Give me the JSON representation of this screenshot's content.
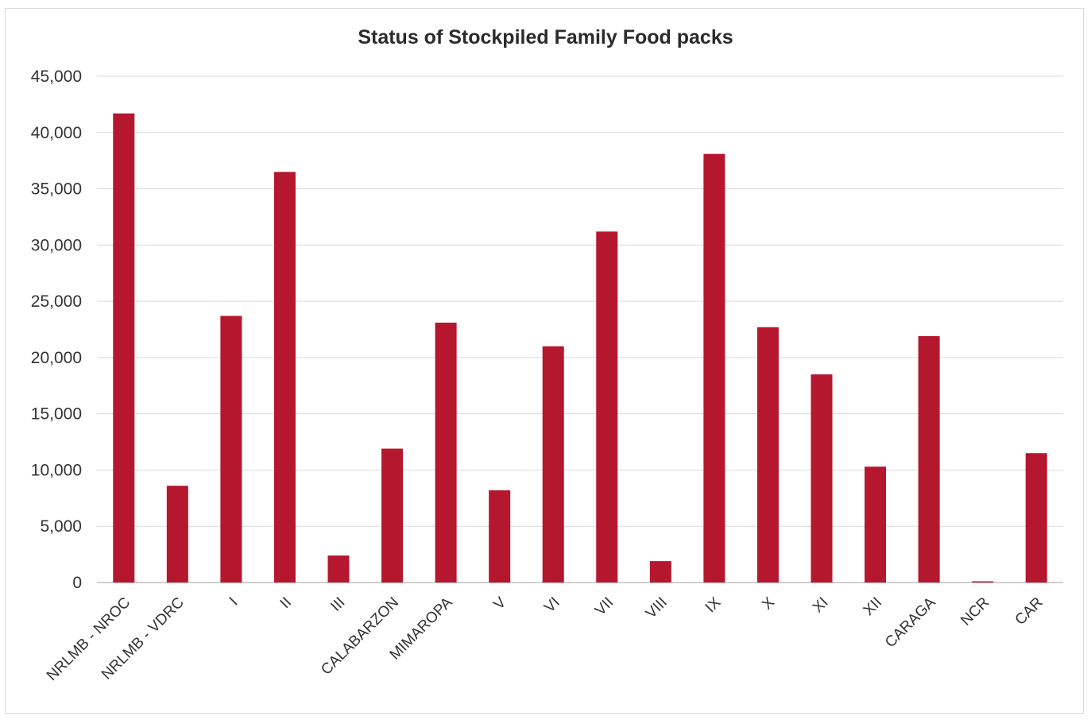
{
  "chart_data": {
    "type": "bar",
    "title": "Status of Stockpiled Family Food packs",
    "xlabel": "",
    "ylabel": "",
    "ylim": [
      0,
      45000
    ],
    "yticks": [
      "0",
      "5,000",
      "10,000",
      "15,000",
      "20,000",
      "25,000",
      "30,000",
      "35,000",
      "40,000",
      "45,000"
    ],
    "grid": true,
    "legend": "none",
    "bar_color": "#b5172e",
    "categories": [
      "NRLMB - NROC",
      "NRLMB - VDRC",
      "I",
      "II",
      "III",
      "CALABARZON",
      "MIMAROPA",
      "V",
      "VI",
      "VII",
      "VIII",
      "IX",
      "X",
      "XI",
      "XII",
      "CARAGA",
      "NCR",
      "CAR"
    ],
    "values": [
      41700,
      8600,
      23700,
      36500,
      2400,
      11900,
      23100,
      8200,
      21000,
      31200,
      1900,
      38100,
      22700,
      18500,
      10300,
      21900,
      100,
      11500
    ]
  }
}
